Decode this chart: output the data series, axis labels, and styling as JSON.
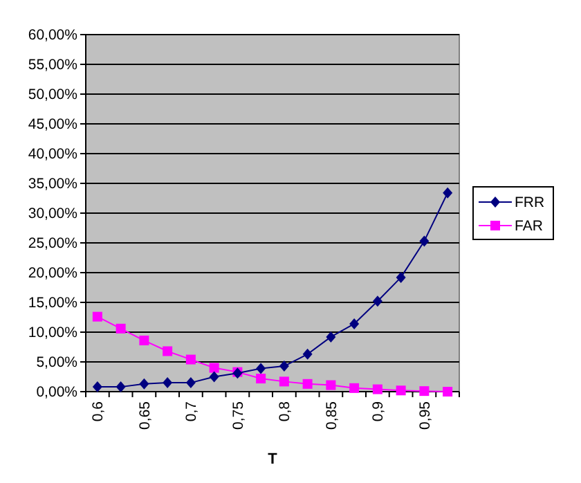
{
  "chart_data": {
    "type": "line",
    "xlabel": "T",
    "categories": [
      "0,6",
      null,
      "0,65",
      null,
      "0,7",
      null,
      "0,75",
      null,
      "0,8",
      null,
      "0,85",
      null,
      "0,9",
      null,
      "0,95",
      null
    ],
    "series": [
      {
        "name": "FRR",
        "color": "#000080",
        "marker": "diamond",
        "values": [
          0.8,
          0.8,
          1.3,
          1.5,
          1.5,
          2.5,
          3.1,
          3.9,
          4.3,
          6.3,
          9.2,
          11.4,
          15.2,
          19.2,
          25.3,
          33.4
        ]
      },
      {
        "name": "FAR",
        "color": "#ff00ff",
        "marker": "square",
        "values": [
          12.6,
          10.6,
          8.6,
          6.8,
          5.4,
          4.0,
          3.3,
          2.2,
          1.7,
          1.3,
          1.1,
          0.6,
          0.4,
          0.2,
          0.1,
          0.0
        ]
      }
    ],
    "ylim": [
      0,
      60
    ],
    "yticks": [
      {
        "value": 0,
        "label": "0,00%"
      },
      {
        "value": 5,
        "label": "5,00%"
      },
      {
        "value": 10,
        "label": "10,00%"
      },
      {
        "value": 15,
        "label": "15,00%"
      },
      {
        "value": 20,
        "label": "20,00%"
      },
      {
        "value": 25,
        "label": "25,00%"
      },
      {
        "value": 30,
        "label": "30,00%"
      },
      {
        "value": 35,
        "label": "35,00%"
      },
      {
        "value": 40,
        "label": "40,00%"
      },
      {
        "value": 45,
        "label": "45,00%"
      },
      {
        "value": 50,
        "label": "50,00%"
      },
      {
        "value": 55,
        "label": "55,00%"
      },
      {
        "value": 60,
        "label": "60,00%"
      }
    ],
    "grid": "y",
    "legend": "right",
    "line_style": "solid"
  }
}
